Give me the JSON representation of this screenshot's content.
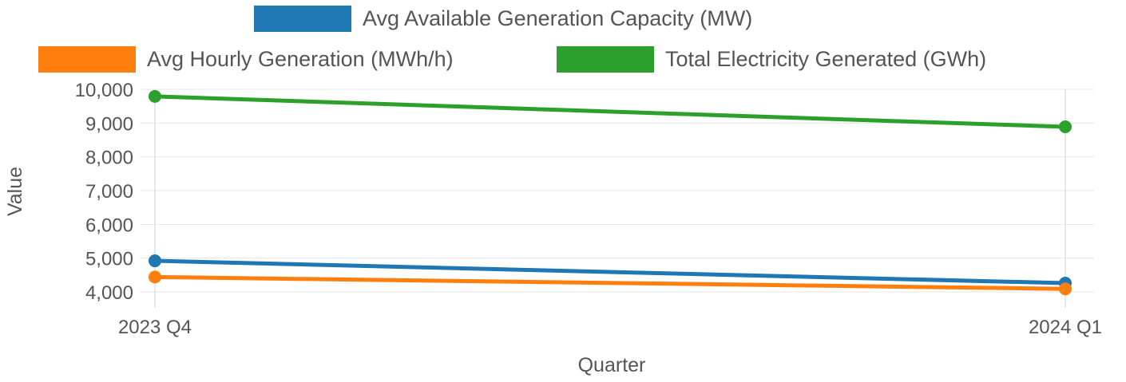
{
  "chart_data": {
    "type": "line",
    "title": "",
    "xlabel": "Quarter",
    "ylabel": "Value",
    "categories": [
      "2023 Q4",
      "2024 Q1"
    ],
    "ylim": [
      4000,
      10000
    ],
    "yticks": [
      4000,
      5000,
      6000,
      7000,
      8000,
      9000,
      10000
    ],
    "ytick_labels": [
      "4,000",
      "5,000",
      "6,000",
      "7,000",
      "8,000",
      "9,000",
      "10,000"
    ],
    "grid": true,
    "legend_position": "top",
    "series": [
      {
        "name": "Avg Available Generation Capacity (MW)",
        "color": "#1f77b4",
        "values": [
          4920,
          4260
        ]
      },
      {
        "name": "Avg Hourly Generation (MWh/h)",
        "color": "#ff7f0e",
        "values": [
          4440,
          4090
        ]
      },
      {
        "name": "Total Electricity Generated (GWh)",
        "color": "#2ca02c",
        "values": [
          9790,
          8890
        ]
      }
    ]
  }
}
